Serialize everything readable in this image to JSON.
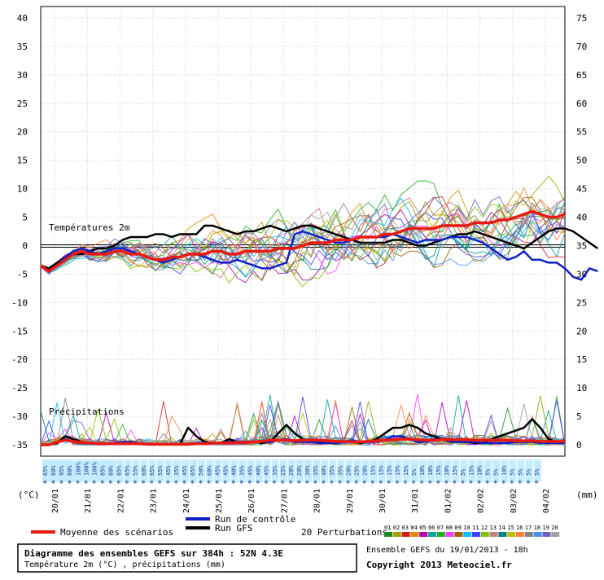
{
  "chart_data": {
    "type": "line",
    "title": "Diagramme des ensembles GEFS sur 384h : 52N 4.3E",
    "subtitle": "Température 2m (°C) , précipitations (mm)",
    "source_line": "Ensemble GEFS du 19/01/2013 - 18h",
    "copyright": "Copyright 2013 Meteociel.fr",
    "section_temp_label": "Températures 2m",
    "section_precip_label": "Précipitations",
    "y_left_unit": "(°C)",
    "y_right_unit": "(mm)",
    "y_left_ticks": [
      40,
      35,
      30,
      25,
      20,
      15,
      10,
      5,
      0,
      -5,
      -10,
      -15,
      -20,
      -25,
      -30,
      -35
    ],
    "y_right_ticks": [
      75,
      70,
      65,
      60,
      55,
      50,
      45,
      40,
      35,
      30,
      25,
      20,
      15,
      10,
      5,
      0
    ],
    "ylim": [
      -37,
      42
    ],
    "x_ticks": [
      "20/01",
      "21/01",
      "22/01",
      "23/01",
      "24/01",
      "25/01",
      "26/01",
      "27/01",
      "28/01",
      "29/01",
      "30/01",
      "31/01",
      "01/02",
      "02/02",
      "03/02",
      "04/02"
    ],
    "grid": true,
    "legend": {
      "mean": "Moyenne des scénarios",
      "control": "Run de contrôle",
      "gfs": "Run GFS",
      "perturbations": "20 Perturbations",
      "perturbation_ids": [
        "01",
        "02",
        "03",
        "04",
        "05",
        "06",
        "07",
        "08",
        "09",
        "10",
        "11",
        "12",
        "13",
        "14",
        "15",
        "16",
        "17",
        "18",
        "19",
        "20"
      ],
      "perturbation_colors": [
        "#1e8a1e",
        "#a0a000",
        "#d22020",
        "#e08a00",
        "#b000b0",
        "#00a0a0",
        "#20b020",
        "#ff40ff",
        "#a06000",
        "#00c0ff",
        "#4040ff",
        "#80c000",
        "#c08080",
        "#008080",
        "#c0c000",
        "#ff8040",
        "#808080",
        "#4a90e2",
        "#7060c0",
        "#a0a0a0"
      ]
    },
    "colors": {
      "mean": "#e81a12",
      "control": "#1020c8",
      "gfs": "#000000",
      "zero_line": "#000000"
    },
    "snow_pct": [
      "65%",
      "80%",
      "95%",
      "80%",
      "100%",
      "100%",
      "100%",
      "85%",
      "80%",
      "85%",
      "65%",
      "55%",
      "60%",
      "65%",
      "55%",
      "45%",
      "35%",
      "45%",
      "65%",
      "50%",
      "60%",
      "45%",
      "45%",
      "40%",
      "35%",
      "45%",
      "40%",
      "45%",
      "35%",
      "25%",
      "20%",
      "20%",
      "30%",
      "35%",
      "40%",
      "35%",
      "35%",
      "20%",
      "25%",
      "20%",
      "15%",
      "15%",
      "15%",
      "15%",
      "15%",
      "5%",
      "10%",
      "10%",
      "15%",
      "10%",
      "15%",
      "5%",
      "15%",
      "10%",
      "5%",
      "5%",
      "10%",
      "5%",
      "5%",
      "5%",
      "5%"
    ],
    "series": [
      {
        "name": "Moyenne des scénarios",
        "role": "temp",
        "values": [
          -3.5,
          -4.5,
          -3.5,
          -2.5,
          -1.5,
          -1,
          -1.5,
          -1.5,
          -1.5,
          -1,
          -1,
          -1.5,
          -1.5,
          -2,
          -2.5,
          -2.5,
          -2,
          -2,
          -1.5,
          -1.5,
          -1.5,
          -1,
          -1,
          -1.5,
          -1.5,
          -1,
          -1,
          -1,
          -1,
          -0.5,
          -0.5,
          -0.5,
          0,
          0.5,
          0.5,
          0.5,
          1,
          1,
          1,
          1.5,
          1.5,
          1.5,
          2,
          2,
          2.5,
          3,
          3,
          3,
          3,
          3.5,
          3.5,
          3.5,
          3.5,
          4,
          4,
          4,
          4.5,
          4.5,
          5,
          5.5,
          6,
          5.5,
          5,
          5,
          5.5
        ]
      },
      {
        "name": "Run de contrôle",
        "role": "temp",
        "values": [
          -3.5,
          -4.5,
          -3.5,
          -2,
          -1,
          -0.5,
          -1,
          -1.5,
          -1,
          -0.5,
          -0.5,
          -1,
          -1.5,
          -2,
          -2.5,
          -3,
          -2.5,
          -2,
          -1.5,
          -1.5,
          -2,
          -2.5,
          -3,
          -3,
          -2.5,
          -3,
          -3.5,
          -4,
          -4,
          -3.5,
          -3,
          2,
          2.5,
          2,
          1.5,
          1,
          0.5,
          0.5,
          1,
          1.5,
          1.5,
          1.5,
          1.5,
          2,
          1.5,
          1,
          0.5,
          1,
          1,
          1,
          1.5,
          1.5,
          1.5,
          1,
          0.5,
          -0.5,
          -1.5,
          -2.5,
          -2,
          -1,
          -2.5,
          -2.5,
          -3,
          -3,
          -4,
          -5.5,
          -6,
          -4,
          -4.5
        ]
      },
      {
        "name": "Run GFS",
        "role": "temp",
        "values": [
          -3.5,
          -4,
          -3,
          -2,
          -1.5,
          -1.5,
          -1,
          -0.5,
          -0.5,
          0,
          1,
          1.5,
          1.5,
          1.5,
          2,
          2,
          1.5,
          2,
          2,
          2,
          3.5,
          3.5,
          3,
          2.5,
          2,
          2.5,
          2.5,
          3,
          3.5,
          3,
          2.5,
          3,
          3.5,
          3.5,
          3,
          2.5,
          2,
          1.5,
          1,
          0.5,
          0.5,
          0.5,
          0.5,
          1,
          1,
          0.5,
          0,
          0,
          0.5,
          1,
          1.5,
          2,
          2,
          2.5,
          2,
          1.5,
          1,
          0.5,
          0,
          -0.5,
          0.5,
          1.5,
          2.5,
          3,
          3,
          2.5,
          1.5,
          0.5,
          -0.5
        ]
      },
      {
        "name": "Moyenne des scénarios",
        "role": "precip",
        "values": [
          0,
          0,
          0.5,
          0.8,
          0.6,
          0.4,
          0.3,
          0.2,
          0.2,
          0.2,
          0.2,
          0.2,
          0.2,
          0.1,
          0.1,
          0.1,
          0.1,
          0.1,
          0.1,
          0.2,
          0.2,
          0.3,
          0.3,
          0.3,
          0.4,
          0.4,
          0.5,
          0.6,
          0.8,
          0.8,
          0.8,
          0.7,
          0.8,
          0.8,
          0.8,
          0.7,
          0.6,
          0.6,
          0.5,
          0.5,
          0.6,
          0.7,
          0.8,
          0.9,
          1,
          1,
          0.9,
          0.8,
          0.8,
          0.9,
          0.9,
          0.9,
          0.9,
          0.8,
          0.8,
          0.8,
          0.8,
          0.8,
          0.7,
          0.7,
          0.7,
          0.6,
          0.6,
          0.6,
          0.6
        ]
      },
      {
        "name": "Run GFS",
        "role": "precip",
        "values": [
          0,
          0,
          0.3,
          1.5,
          1,
          0.5,
          0.3,
          0.2,
          0.2,
          0.2,
          0.2,
          0.2,
          0.2,
          0.1,
          0.1,
          0.1,
          0.1,
          0.1,
          3,
          1.5,
          0.5,
          0.3,
          0.3,
          1,
          0.5,
          0.5,
          0.5,
          0.3,
          0.5,
          2,
          3.5,
          2,
          1,
          0.5,
          0.5,
          0.3,
          0.3,
          0.5,
          0.5,
          0.3,
          0.5,
          1,
          2,
          3,
          3,
          3.5,
          3,
          2,
          1.5,
          1,
          1,
          0.5,
          0.5,
          0.3,
          0.3,
          1,
          1.5,
          2,
          2.5,
          3,
          4.5,
          3,
          1,
          0.5,
          0.5
        ]
      },
      {
        "name": "Run de contrôle",
        "role": "precip",
        "values": [
          0,
          0,
          0.5,
          1,
          0.5,
          0.3,
          0.2,
          0.1,
          0.1,
          0.3,
          0.5,
          0.5,
          0.3,
          0.1,
          0.1,
          0.1,
          0.1,
          0.1,
          0.2,
          0.3,
          0.3,
          0.3,
          0.3,
          0.5,
          0.5,
          0.5,
          0.5,
          0.5,
          0.5,
          0.8,
          1,
          0.5,
          0.5,
          0.5,
          0.3,
          0.3,
          0.3,
          0.5,
          0.8,
          0.5,
          0.5,
          0.5,
          0.8,
          1.5,
          1.5,
          1,
          0.5,
          0.5,
          1,
          1,
          0.5,
          0.5,
          0.5,
          0.5,
          0.3,
          0.3,
          0.3,
          0.3,
          0.5,
          0.5,
          0.5,
          0.3,
          0.3,
          0.3,
          0.3
        ]
      }
    ]
  }
}
